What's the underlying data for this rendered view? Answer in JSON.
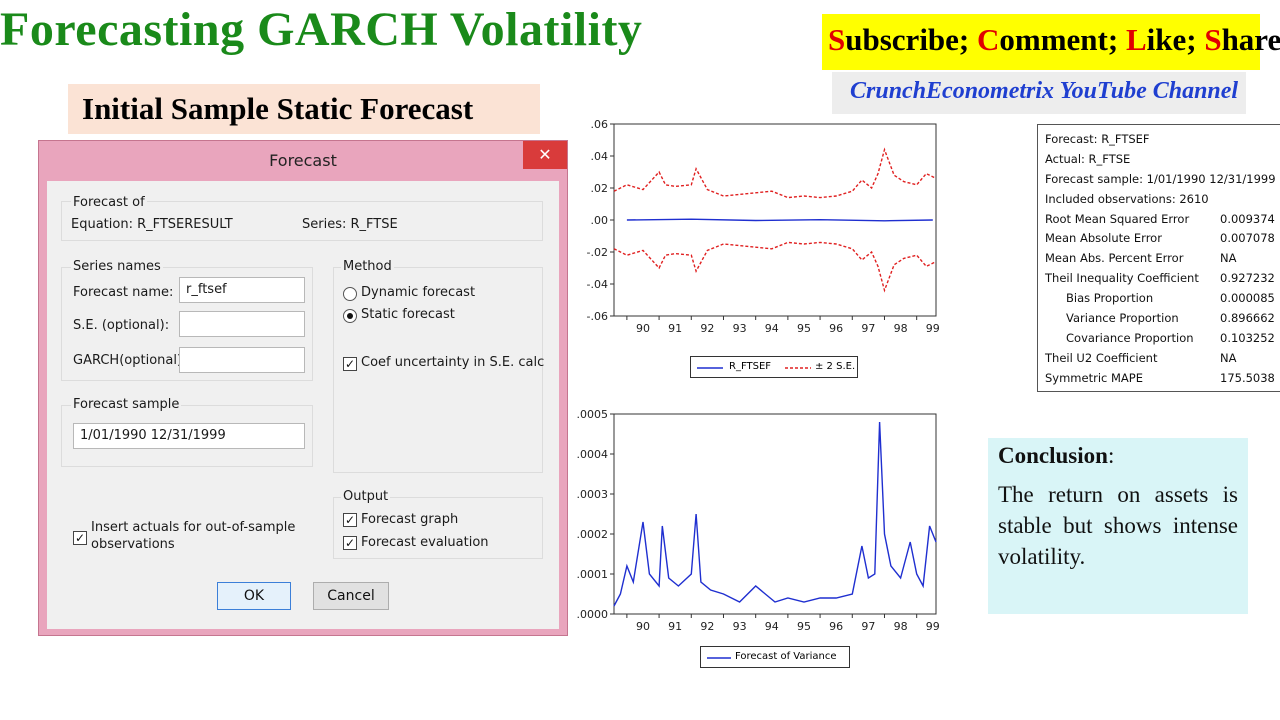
{
  "title": "Forecasting GARCH Volatility",
  "banner": {
    "subscribe_s": "S",
    "subscribe_rest": "ubscribe; ",
    "comment_c": "C",
    "comment_rest": "omment; ",
    "like_l": "L",
    "like_rest": "ike; ",
    "share_s": "S",
    "share_rest": "hare"
  },
  "channel": "CrunchEconometrix YouTube Channel",
  "subtitle": "Initial Sample Static Forecast",
  "dialog": {
    "title": "Forecast",
    "close_glyph": "✕",
    "forecast_of_label": "Forecast of",
    "equation_label": "Equation: R_FTSERESULT",
    "series_label": "Series: R_FTSE",
    "series_names_label": "Series names",
    "forecast_name_label": "Forecast name:",
    "forecast_name_value": "r_ftsef",
    "se_label": "S.E. (optional):",
    "se_value": "",
    "garch_label": "GARCH(optional):",
    "garch_value": "",
    "method_label": "Method",
    "dynamic_label": "Dynamic forecast",
    "static_label": "Static forecast",
    "method_selected": "Static forecast",
    "coef_label": "Coef uncertainty in S.E. calc",
    "coef_checked": true,
    "sample_label": "Forecast sample",
    "sample_value": "1/01/1990 12/31/1999",
    "insert_actuals_label_1": "Insert actuals for out-of-sample",
    "insert_actuals_label_2": "observations",
    "insert_actuals_checked": true,
    "output_label": "Output",
    "graph_label": "Forecast graph",
    "graph_checked": true,
    "evaluation_label": "Forecast evaluation",
    "evaluation_checked": true,
    "ok_label": "OK",
    "cancel_label": "Cancel"
  },
  "chart_data": [
    {
      "type": "line",
      "x_ticks": [
        "90",
        "91",
        "92",
        "93",
        "94",
        "95",
        "96",
        "97",
        "98",
        "99"
      ],
      "y_ticks": [
        ".06",
        ".04",
        ".02",
        ".00",
        "-.02",
        "-.04",
        "-.06"
      ],
      "ylim": [
        -0.06,
        0.06
      ],
      "xlim": [
        1989.6,
        1999.6
      ],
      "series": [
        {
          "name": "R_FTSEF",
          "color": "#1f2fd0",
          "style": "solid",
          "x": [
            1990,
            1992,
            1994,
            1996,
            1998,
            1999.5
          ],
          "values": [
            0.0,
            0.0005,
            -0.0003,
            0.0002,
            -0.0005,
            0.0
          ]
        },
        {
          "name": "± 2 S.E.",
          "color": "#e02020",
          "style": "dashed",
          "x": [
            1989.6,
            1990.0,
            1990.5,
            1991.0,
            1991.2,
            1991.5,
            1992.0,
            1992.15,
            1992.5,
            1993.0,
            1993.5,
            1994.0,
            1994.5,
            1995.0,
            1995.5,
            1996.0,
            1996.5,
            1997.0,
            1997.3,
            1997.6,
            1997.8,
            1998.0,
            1998.3,
            1998.6,
            1999.0,
            1999.3,
            1999.6
          ],
          "values": [
            0.018,
            0.022,
            0.019,
            0.03,
            0.022,
            0.021,
            0.022,
            0.032,
            0.019,
            0.015,
            0.016,
            0.017,
            0.018,
            0.014,
            0.015,
            0.014,
            0.015,
            0.018,
            0.025,
            0.02,
            0.029,
            0.044,
            0.028,
            0.024,
            0.022,
            0.029,
            0.026
          ]
        },
        {
          "name": "± 2 S.E.",
          "color": "#e02020",
          "style": "dashed",
          "x": [
            1989.6,
            1990.0,
            1990.5,
            1991.0,
            1991.2,
            1991.5,
            1992.0,
            1992.15,
            1992.5,
            1993.0,
            1993.5,
            1994.0,
            1994.5,
            1995.0,
            1995.5,
            1996.0,
            1996.5,
            1997.0,
            1997.3,
            1997.6,
            1997.8,
            1998.0,
            1998.3,
            1998.6,
            1999.0,
            1999.3,
            1999.6
          ],
          "values": [
            -0.018,
            -0.022,
            -0.019,
            -0.03,
            -0.022,
            -0.021,
            -0.022,
            -0.032,
            -0.019,
            -0.015,
            -0.016,
            -0.017,
            -0.018,
            -0.014,
            -0.015,
            -0.014,
            -0.015,
            -0.018,
            -0.025,
            -0.02,
            -0.029,
            -0.044,
            -0.028,
            -0.024,
            -0.022,
            -0.029,
            -0.026
          ]
        }
      ]
    },
    {
      "type": "line",
      "x_ticks": [
        "90",
        "91",
        "92",
        "93",
        "94",
        "95",
        "96",
        "97",
        "98",
        "99"
      ],
      "y_ticks": [
        ".0005",
        ".0004",
        ".0003",
        ".0002",
        ".0001",
        ".0000"
      ],
      "ylim": [
        0,
        0.0005
      ],
      "xlim": [
        1989.6,
        1999.6
      ],
      "series": [
        {
          "name": "Forecast of Variance",
          "color": "#1f2fd0",
          "style": "solid",
          "x": [
            1989.6,
            1989.8,
            1990.0,
            1990.2,
            1990.5,
            1990.7,
            1991.0,
            1991.1,
            1991.3,
            1991.6,
            1992.0,
            1992.15,
            1992.3,
            1992.6,
            1993.0,
            1993.5,
            1994.0,
            1994.3,
            1994.6,
            1995.0,
            1995.5,
            1996.0,
            1996.5,
            1997.0,
            1997.3,
            1997.5,
            1997.7,
            1997.85,
            1998.0,
            1998.2,
            1998.5,
            1998.8,
            1999.0,
            1999.2,
            1999.4,
            1999.6
          ],
          "values": [
            2e-05,
            5e-05,
            0.00012,
            8e-05,
            0.00023,
            0.0001,
            7e-05,
            0.00022,
            9e-05,
            7e-05,
            0.0001,
            0.00025,
            8e-05,
            6e-05,
            5e-05,
            3e-05,
            7e-05,
            5e-05,
            3e-05,
            4e-05,
            3e-05,
            4e-05,
            4e-05,
            5e-05,
            0.00017,
            9e-05,
            0.0001,
            0.00048,
            0.0002,
            0.00012,
            9e-05,
            0.00018,
            0.0001,
            7e-05,
            0.00022,
            0.00018
          ]
        }
      ]
    }
  ],
  "legend1": {
    "series1": "R_FTSEF",
    "series2": "± 2 S.E."
  },
  "legend2": {
    "series1": "Forecast of Variance"
  },
  "stats": {
    "header": [
      "Forecast: R_FTSEF",
      "Actual: R_FTSE",
      "Forecast sample: 1/01/1990 12/31/1999",
      "Included observations: 2610"
    ],
    "rows": [
      {
        "label": "Root Mean Squared Error",
        "value": "0.009374"
      },
      {
        "label": "Mean Absolute Error",
        "value": "0.007078"
      },
      {
        "label": "Mean Abs. Percent Error",
        "value": "NA"
      },
      {
        "label": "Theil Inequality Coefficient",
        "value": "0.927232"
      },
      {
        "label": "Bias Proportion",
        "value": "0.000085"
      },
      {
        "label": "Variance Proportion",
        "value": "0.896662"
      },
      {
        "label": "Covariance Proportion",
        "value": "0.103252"
      },
      {
        "label": "Theil U2 Coefficient",
        "value": "NA"
      },
      {
        "label": "Symmetric MAPE",
        "value": "175.5038"
      }
    ]
  },
  "conclusion": {
    "heading": "Conclusion",
    "colon": ":",
    "text": "The return on assets is stable but shows intense volatility."
  }
}
